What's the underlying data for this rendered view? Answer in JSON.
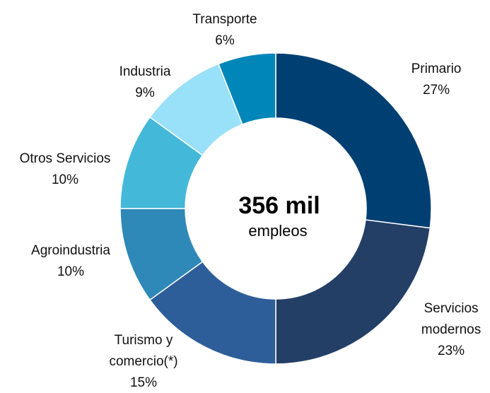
{
  "chart_data": {
    "type": "pie",
    "donut": true,
    "categories": [
      "Primario",
      "Servicios modernos",
      "Turismo y comercio(*)",
      "Agroindustria",
      "Otros Servicios",
      "Industria",
      "Transporte"
    ],
    "values": [
      27,
      23,
      15,
      10,
      10,
      9,
      6
    ],
    "value_labels": [
      "27%",
      "23%",
      "15%",
      "10%",
      "10%",
      "9%",
      "6%"
    ],
    "colors": [
      "#003f72",
      "#243f66",
      "#2e5e9a",
      "#2e88b8",
      "#44b8d8",
      "#99e0f9",
      "#0086b8"
    ],
    "center_label": "356 mil",
    "center_sublabel": "empleos"
  }
}
